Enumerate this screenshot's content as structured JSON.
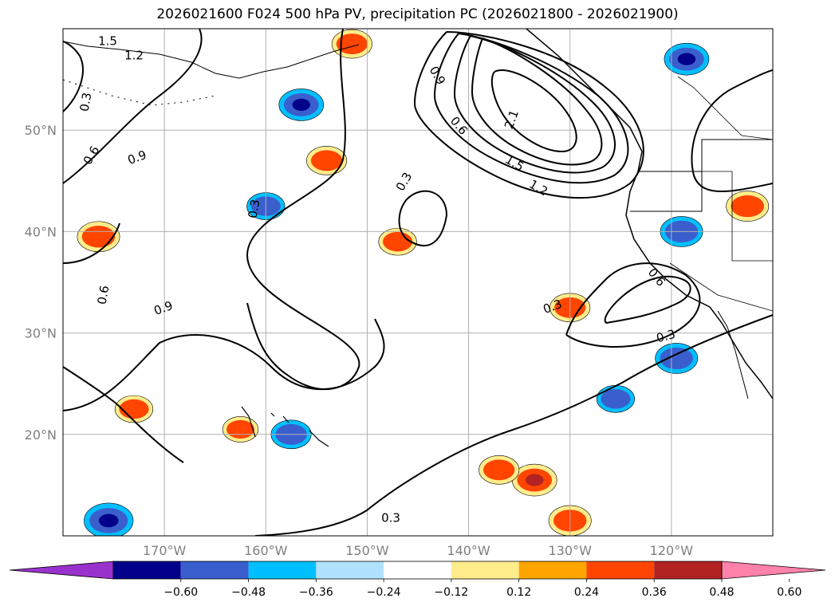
{
  "chart_data": {
    "type": "contour-map",
    "title": "2026021600 F024 500 hPa PV, precipitation PC (2026021800 - 2026021900)",
    "x_axis": {
      "label": "",
      "range": [
        -180,
        -110
      ],
      "ticks": [
        -170,
        -160,
        -150,
        -140,
        -130,
        -120
      ],
      "tick_labels": [
        "170°W",
        "160°W",
        "150°W",
        "140°W",
        "130°W",
        "120°W"
      ]
    },
    "y_axis": {
      "label": "",
      "range": [
        10,
        60
      ],
      "ticks": [
        20,
        30,
        40,
        50
      ],
      "tick_labels": [
        "20°N",
        "30°N",
        "40°N",
        "50°N"
      ]
    },
    "grid": true,
    "pv_contour_labels": [
      "1.5",
      "1.2",
      "0.9",
      "0.6",
      "0.3",
      "2.1",
      "1.5",
      "1.2",
      "0.9",
      "0.6",
      "0.3",
      "0.3",
      "0.6",
      "0.9",
      "0.3",
      "0.6",
      "0.3",
      "0.3"
    ],
    "colorbar": {
      "orientation": "horizontal",
      "extend": "both",
      "levels": [
        -0.6,
        -0.48,
        -0.36,
        -0.24,
        -0.12,
        0.12,
        0.24,
        0.36,
        0.48,
        0.6
      ],
      "tick_labels": [
        "−0.60",
        "−0.48",
        "−0.36",
        "−0.24",
        "−0.12",
        "0.12",
        "0.24",
        "0.36",
        "0.48",
        "0.60"
      ],
      "colors": [
        "#9932cc",
        "#00008b",
        "#3a5fcd",
        "#00bfff",
        "#b0e2ff",
        "#ffffff",
        "#ffec8b",
        "#ffa500",
        "#ff4500",
        "#b22222",
        "#ff82ab"
      ]
    },
    "precip_blobs": [
      {
        "lon": -156.5,
        "lat": 52.5,
        "value": -0.5
      },
      {
        "lon": -118.5,
        "lat": 57.0,
        "value": -0.5
      },
      {
        "lon": -175.5,
        "lat": 11.5,
        "value": -0.6
      },
      {
        "lon": -154.0,
        "lat": 47.0,
        "value": 0.4
      },
      {
        "lon": -176.5,
        "lat": 39.5,
        "value": 0.45
      },
      {
        "lon": -133.5,
        "lat": 15.5,
        "value": 0.5
      },
      {
        "lon": -130.0,
        "lat": 11.5,
        "value": 0.45
      },
      {
        "lon": -119.0,
        "lat": 40.0,
        "value": -0.45
      },
      {
        "lon": -119.5,
        "lat": 27.5,
        "value": -0.45
      },
      {
        "lon": -112.5,
        "lat": 42.5,
        "value": 0.45
      },
      {
        "lon": -157.5,
        "lat": 20.0,
        "value": -0.4
      },
      {
        "lon": -160.0,
        "lat": 42.5,
        "value": -0.35
      },
      {
        "lon": -137.0,
        "lat": 16.5,
        "value": 0.4
      },
      {
        "lon": -151.5,
        "lat": 58.5,
        "value": 0.4
      },
      {
        "lon": -130.0,
        "lat": 32.5,
        "value": 0.4
      },
      {
        "lon": -147.0,
        "lat": 39.0,
        "value": 0.35
      },
      {
        "lon": -173.0,
        "lat": 22.5,
        "value": 0.35
      },
      {
        "lon": -162.5,
        "lat": 20.5,
        "value": 0.3
      },
      {
        "lon": -125.5,
        "lat": 23.5,
        "value": -0.35
      }
    ]
  }
}
